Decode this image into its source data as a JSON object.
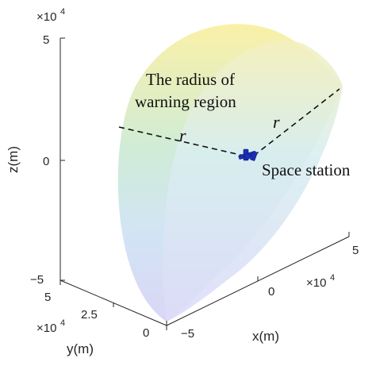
{
  "axes": {
    "z": {
      "label": "z(m)",
      "exponent_base": "×10",
      "exponent_power": "4",
      "ticks": [
        "5",
        "0",
        "−5"
      ]
    },
    "y": {
      "label": "y(m)",
      "exponent_base": "×10",
      "exponent_power": "4",
      "ticks": [
        "5",
        "2.5",
        "0"
      ]
    },
    "x": {
      "label": "x(m)",
      "exponent_base": "×10",
      "exponent_power": "4",
      "ticks": [
        "−5",
        "0",
        "5"
      ]
    }
  },
  "annotations": {
    "radius_line1": "The radius of",
    "radius_line2": "warning region",
    "radius_symbol": "r",
    "station_label": "Space station"
  },
  "colors": {
    "axis": "#262626",
    "surface_top": "#f7ec9c",
    "surface_mid": "#c9eedf",
    "surface_bottom": "#d4d3f5",
    "station": "#1a2fb5"
  }
}
